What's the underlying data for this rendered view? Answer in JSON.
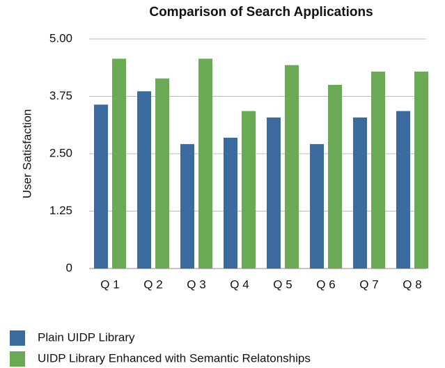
{
  "chart_data": {
    "type": "bar",
    "title": "Comparison of Search Applications",
    "y_label": "User Satisfaction",
    "categories": [
      "Q 1",
      "Q 2",
      "Q 3",
      "Q 4",
      "Q 5",
      "Q 6",
      "Q 7",
      "Q 8"
    ],
    "series": [
      {
        "name": "Plain UIDP Library",
        "color": "#3b6a9f",
        "values": [
          3.57,
          3.86,
          2.71,
          2.85,
          3.29,
          2.71,
          3.29,
          3.43
        ]
      },
      {
        "name": "UIDP Library Enhanced with Semantic Relatonships",
        "color": "#6aaa55",
        "values": [
          4.57,
          4.14,
          4.57,
          3.43,
          4.43,
          4.0,
          4.29,
          4.29
        ]
      }
    ],
    "ylim": [
      0,
      5
    ],
    "yticks": [
      0,
      1.25,
      {
        "value": 2.5,
        "label": "2.50"
      },
      3.75,
      {
        "value": 5,
        "label": "5.00"
      }
    ],
    "grid": true,
    "legend": "bottom-left"
  }
}
